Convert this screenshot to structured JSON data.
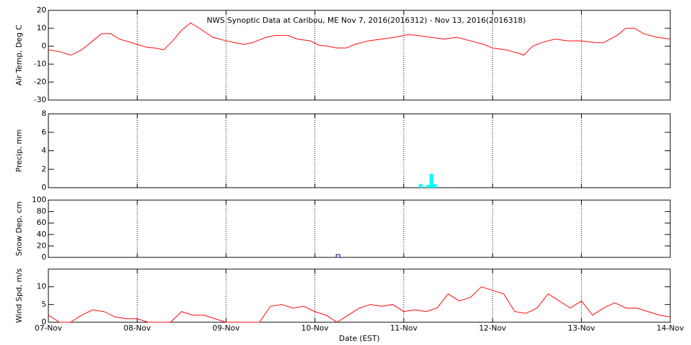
{
  "chart_data": [
    {
      "type": "line",
      "title": "NWS Synoptic Data at Caribou, ME   Nov  7, 2016(2016312) - Nov 13, 2016(2016318)",
      "y_label": "Air Temp, Deg C",
      "x": [
        0,
        0.125,
        0.25,
        0.375,
        0.5,
        0.6,
        0.7,
        0.8,
        1.0,
        1.1,
        1.2,
        1.3,
        1.4,
        1.5,
        1.6,
        1.7,
        1.85,
        2.0,
        2.1,
        2.2,
        2.3,
        2.45,
        2.55,
        2.7,
        2.8,
        2.95,
        3.05,
        3.15,
        3.25,
        3.35,
        3.45,
        3.6,
        3.75,
        3.9,
        4.05,
        4.15,
        4.3,
        4.45,
        4.6,
        4.75,
        4.9,
        5.0,
        5.15,
        5.3,
        5.35,
        5.45,
        5.55,
        5.7,
        5.85,
        6.0,
        6.15,
        6.25,
        6.4,
        6.5,
        6.6,
        6.7,
        6.85,
        7.0
      ],
      "series": [
        {
          "name": "Air Temp",
          "color": "#ff0000",
          "values": [
            -2,
            -3,
            -5,
            -2,
            3,
            7,
            7,
            4,
            1,
            -0.5,
            -1,
            -2,
            3,
            9,
            13,
            10,
            5,
            3,
            2,
            1,
            2,
            5,
            6,
            6,
            4,
            3,
            0.5,
            0,
            -1,
            -1,
            1,
            3,
            4,
            5,
            6.5,
            6,
            5,
            4,
            5,
            3,
            1,
            -1,
            -2,
            -4,
            -5,
            0,
            2,
            4,
            3,
            3,
            2,
            2,
            6,
            10,
            10,
            7,
            5,
            4
          ]
        }
      ],
      "xlim": [
        0,
        7
      ],
      "xticks": [
        0,
        1,
        2,
        3,
        4,
        5,
        6,
        7
      ],
      "ylim": [
        -30,
        20
      ],
      "yticks": [
        -30,
        -20,
        -10,
        0,
        10,
        20
      ],
      "grid": true
    },
    {
      "type": "bar",
      "y_label": "Precip, mm",
      "x": [
        4.17,
        4.25,
        4.29,
        4.33
      ],
      "series": [
        {
          "name": "Precip",
          "color": "#00ffff",
          "values": [
            0.4,
            0.3,
            1.5,
            0.4
          ]
        }
      ],
      "xlim": [
        0,
        7
      ],
      "xticks": [
        0,
        1,
        2,
        3,
        4,
        5,
        6,
        7
      ],
      "ylim": [
        0,
        8
      ],
      "yticks": [
        0,
        2,
        4,
        6,
        8
      ],
      "grid": true
    },
    {
      "type": "bar",
      "y_label": "Snow Dep, cm",
      "x": [
        3.24
      ],
      "series": [
        {
          "name": "Snow Dep",
          "color": "#000080",
          "values": [
            0
          ]
        }
      ],
      "xlim": [
        0,
        7
      ],
      "xticks": [
        0,
        1,
        2,
        3,
        4,
        5,
        6,
        7
      ],
      "ylim": [
        0,
        100
      ],
      "yticks": [
        0,
        20,
        40,
        60,
        80,
        100
      ],
      "grid": true
    },
    {
      "type": "line",
      "y_label": "Wind Spd, m/s",
      "x_label": "Date (EST)",
      "x": [
        0,
        0.125,
        0.25,
        0.375,
        0.5,
        0.625,
        0.75,
        0.875,
        1.0,
        1.125,
        1.25,
        1.375,
        1.5,
        1.625,
        1.75,
        1.875,
        2.0,
        2.125,
        2.25,
        2.375,
        2.5,
        2.625,
        2.75,
        2.875,
        3.0,
        3.125,
        3.25,
        3.375,
        3.5,
        3.625,
        3.75,
        3.875,
        4.0,
        4.125,
        4.25,
        4.375,
        4.5,
        4.625,
        4.75,
        4.875,
        5.0,
        5.125,
        5.25,
        5.375,
        5.5,
        5.625,
        5.75,
        5.875,
        6.0,
        6.125,
        6.25,
        6.375,
        6.5,
        6.625,
        6.75,
        6.875,
        7.0
      ],
      "series": [
        {
          "name": "Wind Spd",
          "color": "#ff0000",
          "values": [
            2,
            0,
            0,
            2,
            3.5,
            3,
            1.5,
            1,
            1,
            0,
            0,
            0,
            3,
            2,
            2,
            1,
            0,
            0,
            0,
            0,
            4.5,
            5,
            4,
            4.5,
            3,
            2,
            0,
            2,
            4,
            5,
            4.5,
            5,
            3,
            3.5,
            3,
            4,
            8,
            6,
            7,
            10,
            9,
            8,
            3,
            2.5,
            4,
            8,
            6,
            4,
            6,
            2,
            4,
            5.5,
            4,
            4,
            3,
            2,
            1.5
          ]
        }
      ],
      "xlim": [
        0,
        7
      ],
      "xticks": [
        {
          "value": 0,
          "label": "07-Nov"
        },
        {
          "value": 1,
          "label": "08-Nov"
        },
        {
          "value": 2,
          "label": "09-Nov"
        },
        {
          "value": 3,
          "label": "10-Nov"
        },
        {
          "value": 4,
          "label": "11-Nov"
        },
        {
          "value": 5,
          "label": "12-Nov"
        },
        {
          "value": 6,
          "label": "13-Nov"
        },
        {
          "value": 7,
          "label": "14-Nov"
        }
      ],
      "ylim": [
        0,
        15
      ],
      "yticks": [
        0,
        5,
        10
      ],
      "grid": true
    }
  ]
}
